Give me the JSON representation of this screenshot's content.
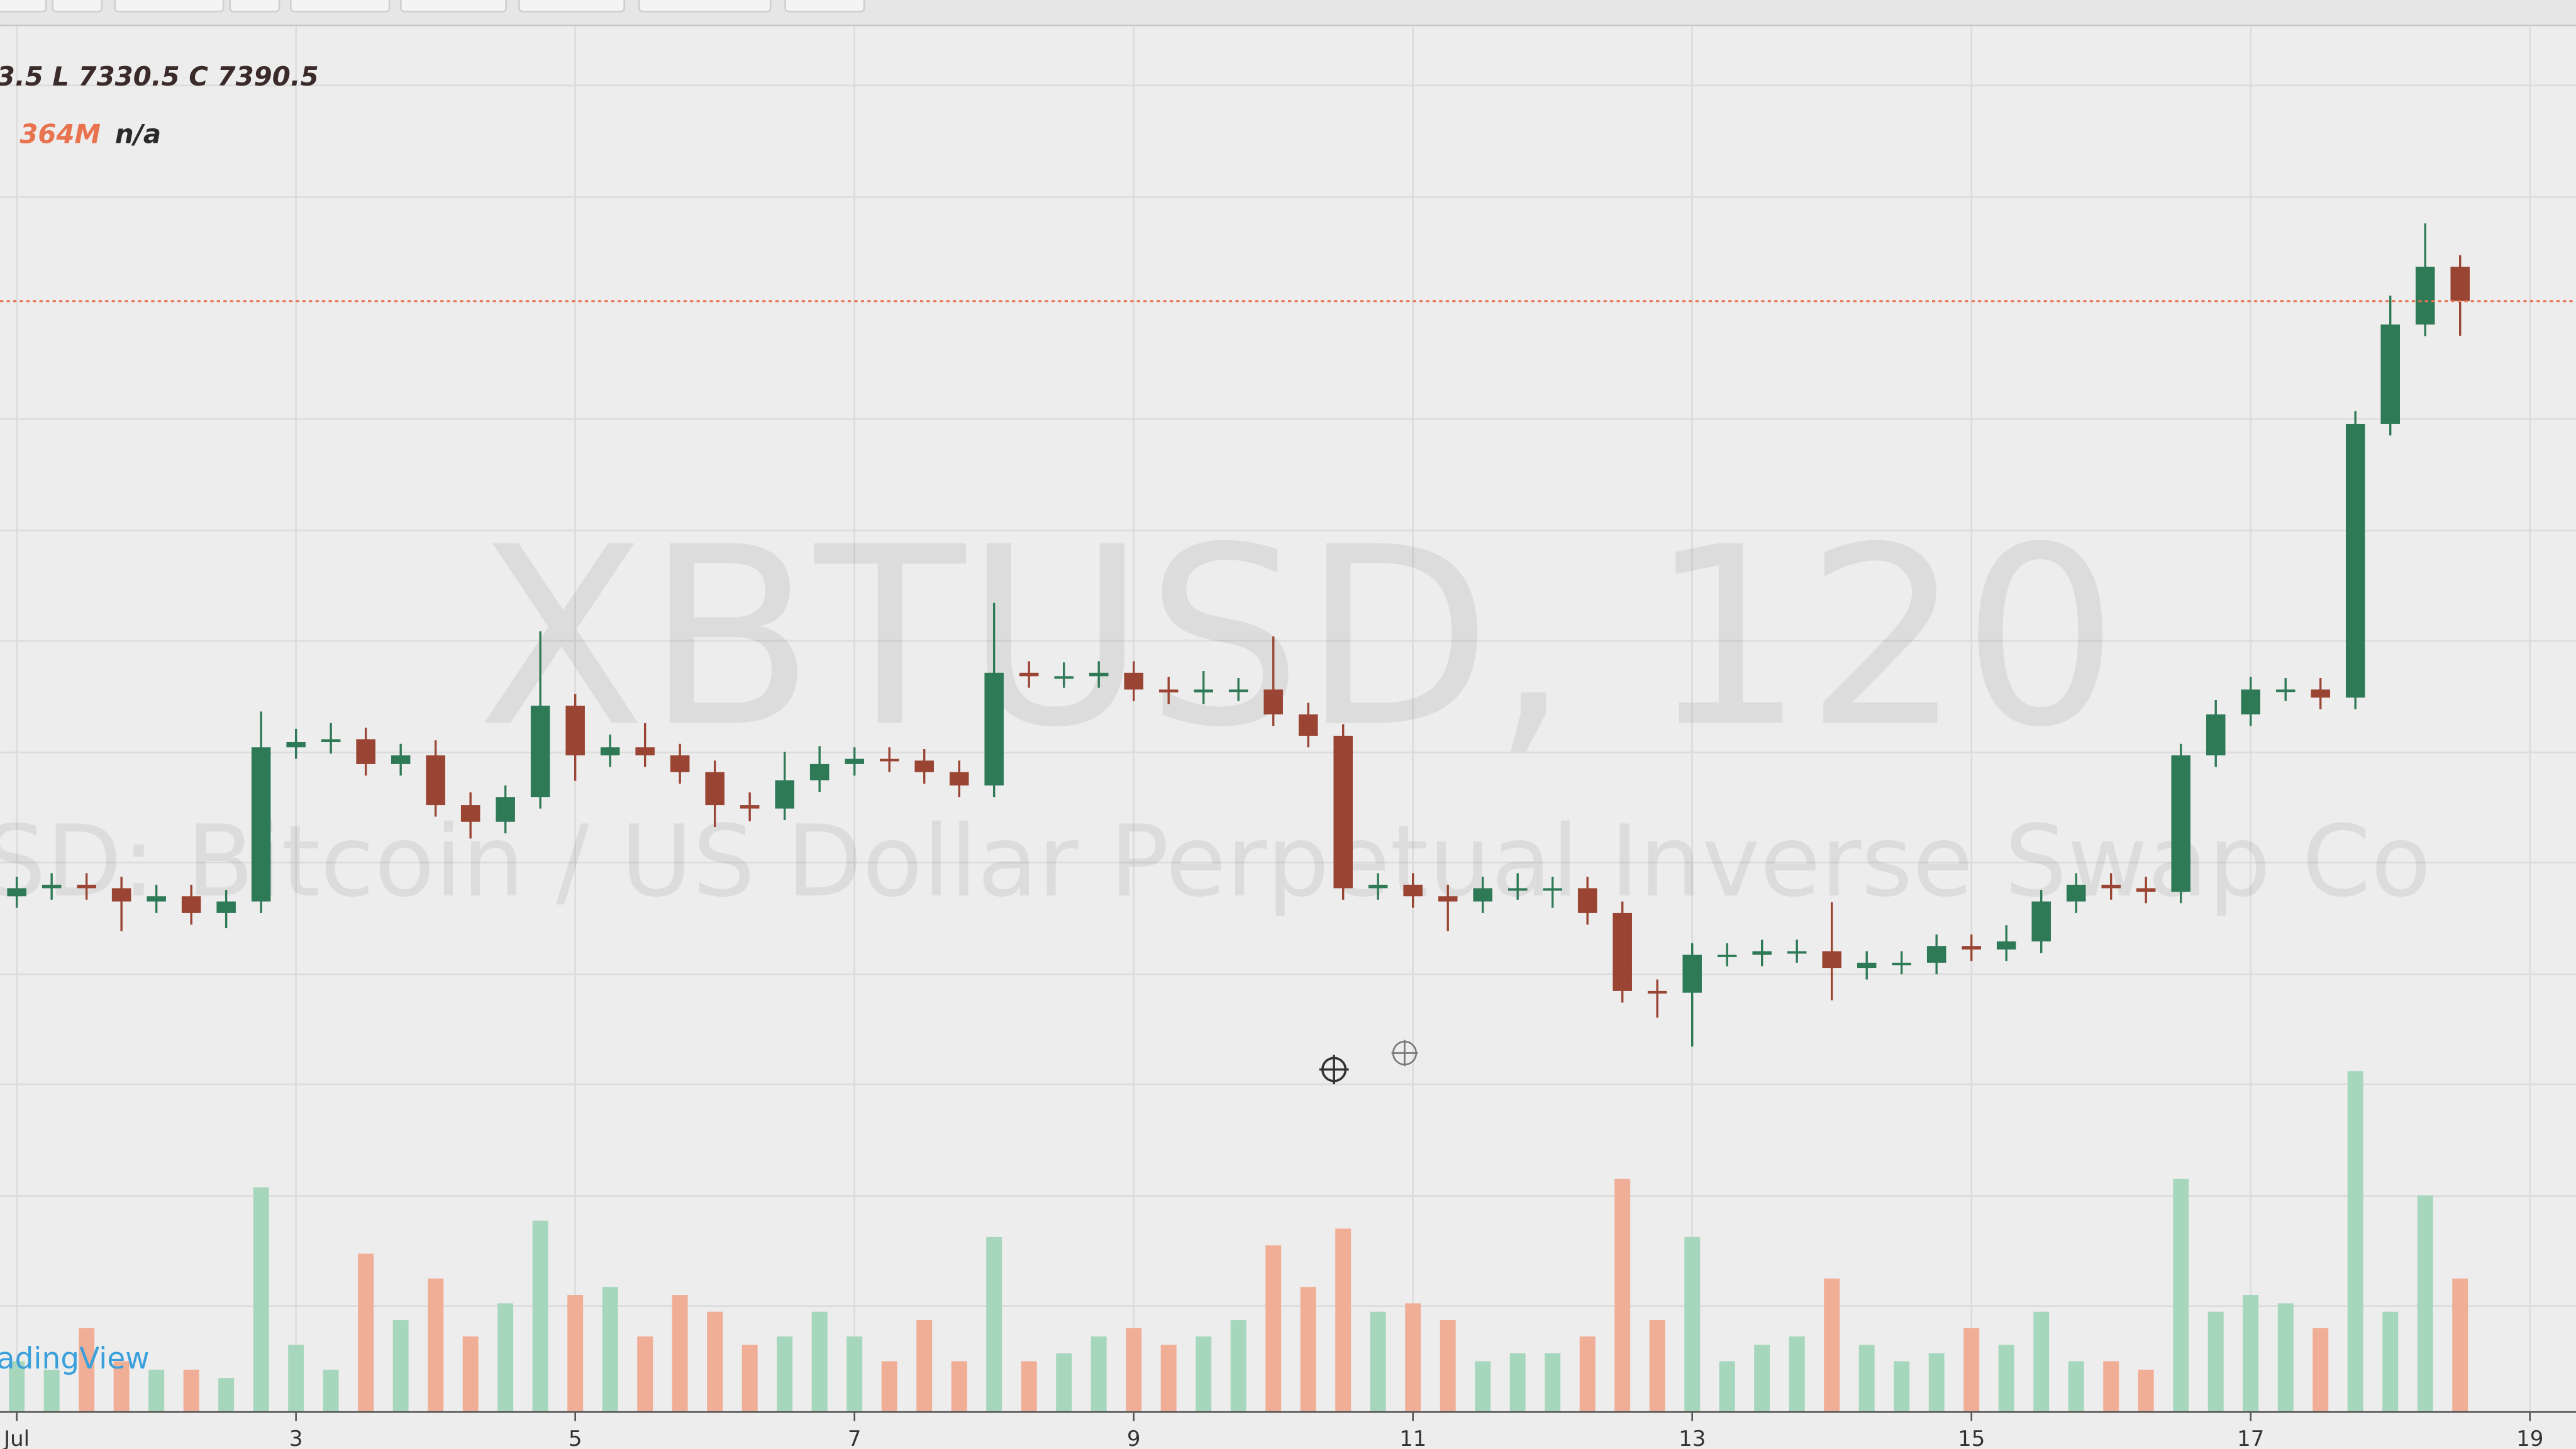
{
  "chart_data": {
    "type": "candlestick",
    "watermark_title": "XBTUSD, 120",
    "watermark_subtitle": "SD: Bitcoin / US Dollar Perpetual Inverse Swap Co",
    "ohlc_legend": "3.5 L 7330.5 C 7390.5",
    "volume_legend": "364M",
    "volume_extra": "n/a",
    "brand": "adingView",
    "up_color": "#2f7a56",
    "down_color": "#9a4433",
    "volume_up_color": "#a6d7bd",
    "volume_down_color": "#f0ae96",
    "price_line_color": "#e8734f",
    "xlim": [
      0.88,
      19.33
    ],
    "xticks": [
      {
        "value": 1,
        "label": "Jul"
      },
      3,
      5,
      7,
      9,
      11,
      13,
      15,
      17,
      19
    ],
    "x": [
      1,
      1.25,
      1.5,
      1.75,
      2,
      2.25,
      2.5,
      2.75,
      3,
      3.25,
      3.5,
      3.75,
      4,
      4.25,
      4.5,
      4.75,
      5,
      5.25,
      5.5,
      5.75,
      6,
      6.25,
      6.5,
      6.75,
      7,
      7.25,
      7.5,
      7.75,
      8,
      8.25,
      8.5,
      8.75,
      9,
      9.25,
      9.5,
      9.75,
      10,
      10.25,
      10.5,
      10.75,
      11,
      11.25,
      11.5,
      11.75,
      12,
      12.25,
      12.5,
      12.75,
      13,
      13.25,
      13.5,
      13.75,
      14,
      14.25,
      14.5,
      14.75,
      15,
      15.25,
      15.5,
      15.75,
      16,
      16.25,
      16.5,
      16.75,
      17,
      17.25,
      17.5,
      17.75,
      18,
      18.25,
      18.5
    ],
    "open": [
      6360,
      6374,
      6380,
      6374,
      6351,
      6360,
      6331,
      6351,
      6618,
      6627,
      6632,
      6589,
      6604,
      6518,
      6489,
      6532,
      6690,
      6604,
      6618,
      6604,
      6575,
      6518,
      6512,
      6561,
      6589,
      6598,
      6595,
      6575,
      6552,
      6747,
      6741,
      6741,
      6747,
      6718,
      6713,
      6718,
      6718,
      6675,
      6638,
      6374,
      6380,
      6360,
      6351,
      6374,
      6374,
      6374,
      6331,
      6196,
      6193,
      6259,
      6259,
      6265,
      6265,
      6236,
      6245,
      6245,
      6274,
      6268,
      6282,
      6351,
      6380,
      6374,
      6368,
      6604,
      6675,
      6718,
      6718,
      6704,
      7178,
      7350,
      7450
    ],
    "high": [
      6394,
      6400,
      6400,
      6394,
      6380,
      6380,
      6371,
      6680,
      6650,
      6660,
      6652,
      6624,
      6630,
      6540,
      6552,
      6819,
      6710,
      6640,
      6660,
      6624,
      6595,
      6540,
      6610,
      6620,
      6618,
      6618,
      6615,
      6595,
      6868,
      6767,
      6765,
      6767,
      6767,
      6740,
      6750,
      6738,
      6810,
      6695,
      6658,
      6400,
      6400,
      6380,
      6394,
      6400,
      6394,
      6394,
      6351,
      6216,
      6279,
      6279,
      6285,
      6285,
      6350,
      6265,
      6265,
      6294,
      6294,
      6310,
      6371,
      6400,
      6400,
      6394,
      6624,
      6700,
      6740,
      6738,
      6738,
      7200,
      7400,
      7525,
      7470
    ],
    "low": [
      6340,
      6354,
      6354,
      6300,
      6331,
      6311,
      6305,
      6331,
      6598,
      6607,
      6569,
      6569,
      6498,
      6460,
      6469,
      6512,
      6560,
      6584,
      6584,
      6555,
      6480,
      6490,
      6492,
      6541,
      6569,
      6575,
      6555,
      6532,
      6532,
      6721,
      6721,
      6721,
      6698,
      6693,
      6693,
      6698,
      6655,
      6618,
      6354,
      6354,
      6340,
      6300,
      6331,
      6354,
      6340,
      6311,
      6176,
      6150,
      6100,
      6239,
      6239,
      6245,
      6180,
      6216,
      6225,
      6225,
      6248,
      6248,
      6262,
      6331,
      6354,
      6348,
      6348,
      6584,
      6655,
      6698,
      6684,
      6684,
      7158,
      7330,
      7330.5
    ],
    "close": [
      6374,
      6380,
      6374,
      6351,
      6360,
      6331,
      6351,
      6618,
      6627,
      6632,
      6589,
      6604,
      6518,
      6489,
      6532,
      6690,
      6604,
      6618,
      6604,
      6575,
      6518,
      6512,
      6561,
      6589,
      6598,
      6595,
      6575,
      6552,
      6747,
      6741,
      6741,
      6747,
      6718,
      6713,
      6718,
      6718,
      6675,
      6638,
      6374,
      6380,
      6360,
      6351,
      6374,
      6374,
      6374,
      6331,
      6196,
      6193,
      6259,
      6259,
      6265,
      6265,
      6236,
      6245,
      6245,
      6274,
      6268,
      6282,
      6351,
      6380,
      6374,
      6368,
      6604,
      6675,
      6718,
      6718,
      6704,
      7178,
      7350,
      7450,
      7390.5
    ],
    "volume": [
      137,
      114,
      228,
      137,
      114,
      114,
      91,
      614,
      182,
      114,
      432,
      250,
      364,
      205,
      296,
      523,
      319,
      341,
      205,
      319,
      273,
      182,
      205,
      273,
      205,
      137,
      250,
      137,
      478,
      137,
      159,
      205,
      228,
      182,
      205,
      250,
      455,
      341,
      501,
      273,
      296,
      250,
      137,
      159,
      159,
      205,
      637,
      250,
      478,
      137,
      182,
      205,
      364,
      182,
      137,
      159,
      228,
      182,
      273,
      137,
      137,
      114,
      637,
      273,
      319,
      296,
      228,
      933,
      273,
      592,
      364
    ]
  }
}
